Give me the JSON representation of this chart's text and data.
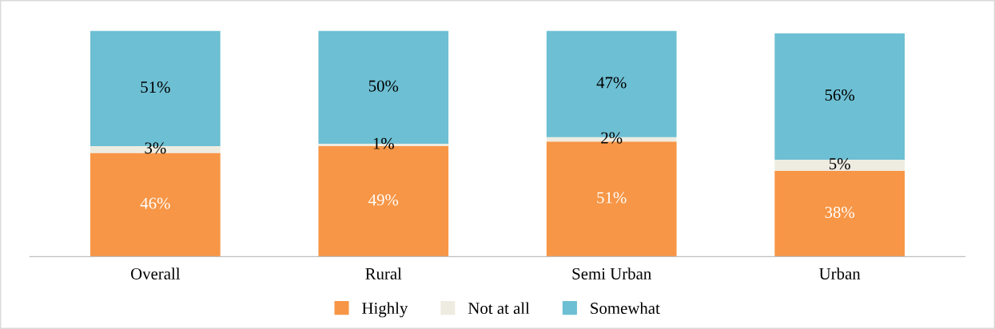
{
  "chart_data": {
    "type": "bar",
    "stacked": true,
    "legend": "bottom",
    "grid": false,
    "categories": [
      "Overall",
      "Rural",
      "Semi Urban",
      "Urban"
    ],
    "series": [
      {
        "name": "Highly",
        "color": "#f79646",
        "values": [
          46,
          49,
          51,
          38
        ],
        "value_labels": [
          "46%",
          "49%",
          "51%",
          "38%"
        ]
      },
      {
        "name": "Not at all",
        "color": "#eeece1",
        "values": [
          3,
          1,
          2,
          5
        ],
        "value_labels": [
          "3%",
          "1%",
          "2%",
          "5%"
        ]
      },
      {
        "name": "Somewhat",
        "color": "#6dbfd3",
        "values": [
          51,
          50,
          47,
          56
        ],
        "value_labels": [
          "51%",
          "50%",
          "47%",
          "56%"
        ]
      }
    ]
  }
}
